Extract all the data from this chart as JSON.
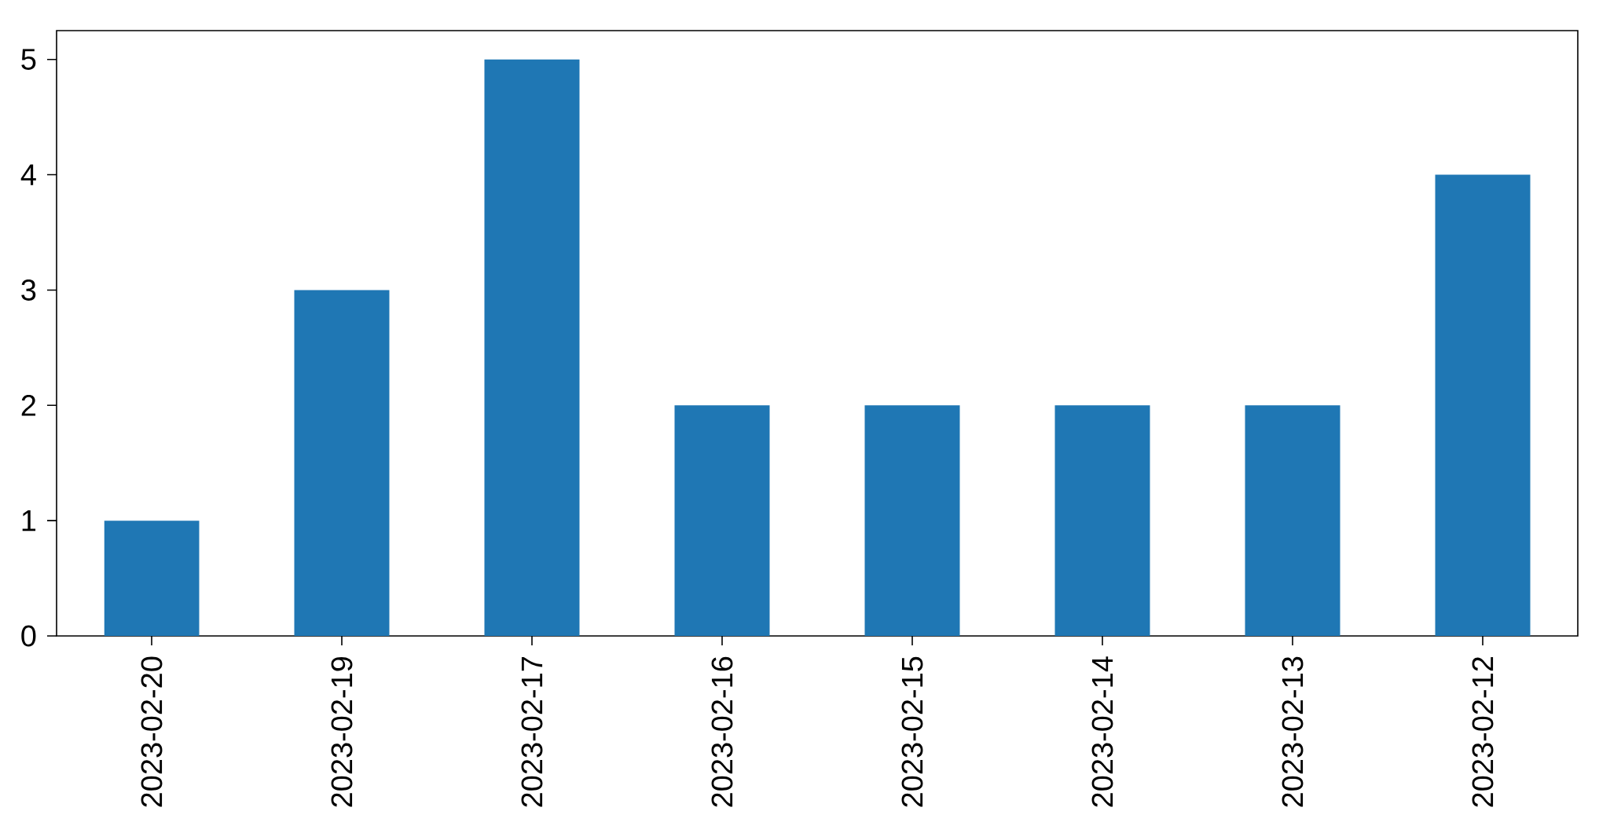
{
  "chart_data": {
    "type": "bar",
    "categories": [
      "2023-02-20",
      "2023-02-19",
      "2023-02-17",
      "2023-02-16",
      "2023-02-15",
      "2023-02-14",
      "2023-02-13",
      "2023-02-12"
    ],
    "values": [
      1,
      3,
      5,
      2,
      2,
      2,
      2,
      4
    ],
    "color": "#1f77b4",
    "ylim": [
      0,
      5.25
    ],
    "yticks": [
      0,
      1,
      2,
      3,
      4,
      5
    ]
  }
}
